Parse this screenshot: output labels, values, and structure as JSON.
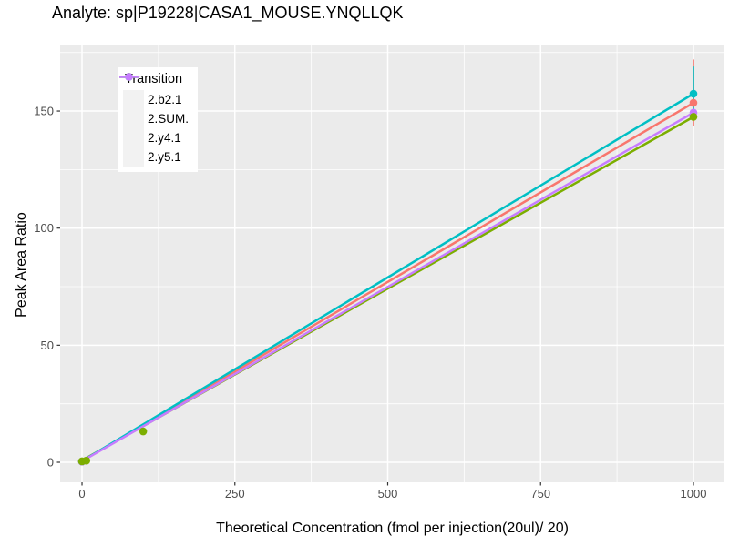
{
  "chart_data": {
    "type": "line",
    "title": "Analyte: sp|P19228|CASA1_MOUSE.YNQLLQK",
    "xlabel": "Theoretical Concentration (fmol per injection(20ul)/ 20)",
    "ylabel": "Peak Area Ratio",
    "legend_title": "Transition",
    "legend_position": "top-left-inside",
    "grid": true,
    "xlim": [
      -35.8,
      1050.7
    ],
    "ylim": [
      -8.55,
      178.0
    ],
    "x_ticks": [
      0,
      250,
      500,
      750,
      1000
    ],
    "y_ticks": [
      0,
      50,
      100,
      150
    ],
    "x_minor_ticks": [
      125,
      375,
      625,
      875
    ],
    "y_minor_ticks": [
      25,
      75,
      125,
      175
    ],
    "colors": {
      "panel_bg": "#EBEBEB",
      "grid": "#FFFFFF",
      "tick_mark": "#333333",
      "tick_label": "#4D4D4D",
      "text": "#000000",
      "legend_key_bg": "#F2F2F2"
    },
    "series": [
      {
        "name": "2.b2.1",
        "color": "#F8766D",
        "line": [
          [
            0,
            0.5
          ],
          [
            1000,
            153.5
          ]
        ],
        "markers": [
          [
            0,
            0.3
          ],
          [
            1000,
            153.5
          ]
        ],
        "error_bars": [
          {
            "x": 1000,
            "ymin": 143.5,
            "ymax": 172.0
          }
        ]
      },
      {
        "name": "2.SUM.",
        "color": "#7CAE00",
        "line": [
          [
            0,
            0.8
          ],
          [
            1000,
            147.5
          ]
        ],
        "markers": [
          [
            0,
            0.4
          ],
          [
            7,
            0.7
          ],
          [
            100,
            13.2
          ],
          [
            1000,
            147.5
          ]
        ],
        "error_bars": []
      },
      {
        "name": "2.y4.1",
        "color": "#00BFC4",
        "line": [
          [
            0,
            0.5
          ],
          [
            1000,
            157.4
          ]
        ],
        "markers": [
          [
            0,
            0.3
          ],
          [
            1000,
            157.4
          ]
        ],
        "error_bars": [
          {
            "x": 1000,
            "ymin": 148.0,
            "ymax": 169.0
          }
        ]
      },
      {
        "name": "2.y5.1",
        "color": "#C77CFF",
        "line": [
          [
            0,
            0.5
          ],
          [
            1000,
            149.3
          ]
        ],
        "markers": [
          [
            0,
            0.3
          ],
          [
            1000,
            149.3
          ]
        ],
        "error_bars": []
      }
    ]
  }
}
